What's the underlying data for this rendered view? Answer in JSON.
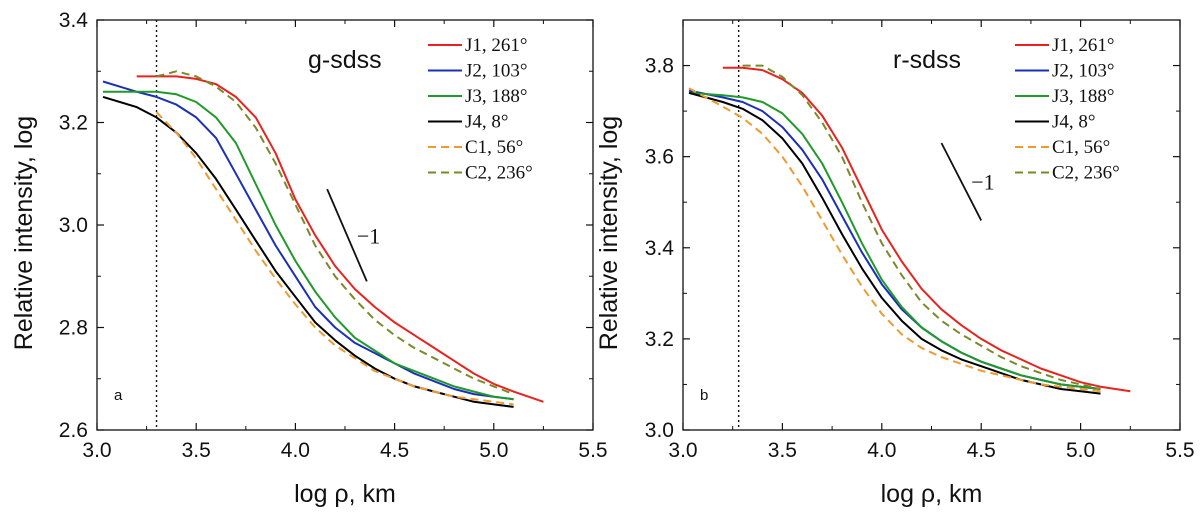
{
  "chart_data": [
    {
      "type": "line",
      "panel_letter": "a",
      "title": "g-sdss",
      "xlabel": "log ρ, km",
      "ylabel": "Relative intensity, log",
      "xlim": [
        3.0,
        5.5
      ],
      "ylim": [
        2.6,
        3.4
      ],
      "xticks": [
        "3.0",
        "3.5",
        "4.0",
        "4.5",
        "5.0",
        "5.5"
      ],
      "yticks": [
        "2.6",
        "2.8",
        "3.0",
        "3.2",
        "3.4"
      ],
      "vline_x": 3.3,
      "slope": {
        "label": "−1",
        "x": [
          4.16,
          4.36
        ],
        "y": [
          3.07,
          2.89
        ]
      },
      "series": [
        {
          "name": "J1, 261°",
          "color": "#e8231f",
          "dash": "solid",
          "x": [
            3.2,
            3.3,
            3.4,
            3.5,
            3.6,
            3.7,
            3.8,
            3.9,
            4.0,
            4.1,
            4.2,
            4.3,
            4.4,
            4.5,
            4.6,
            4.7,
            4.8,
            4.9,
            5.0,
            5.1,
            5.25
          ],
          "y": [
            3.29,
            3.29,
            3.29,
            3.285,
            3.275,
            3.25,
            3.21,
            3.14,
            3.05,
            2.98,
            2.92,
            2.875,
            2.84,
            2.81,
            2.785,
            2.76,
            2.735,
            2.71,
            2.69,
            2.675,
            2.655
          ]
        },
        {
          "name": "J2, 103°",
          "color": "#1b2fb8",
          "dash": "solid",
          "x": [
            3.03,
            3.2,
            3.3,
            3.4,
            3.5,
            3.6,
            3.7,
            3.8,
            3.9,
            4.0,
            4.1,
            4.2,
            4.3,
            4.4,
            4.5,
            4.6,
            4.7,
            4.8,
            4.9,
            5.0,
            5.1
          ],
          "y": [
            3.28,
            3.26,
            3.25,
            3.235,
            3.21,
            3.17,
            3.1,
            3.03,
            2.96,
            2.9,
            2.84,
            2.8,
            2.77,
            2.75,
            2.73,
            2.71,
            2.695,
            2.68,
            2.67,
            2.665,
            2.66
          ]
        },
        {
          "name": "J3, 188°",
          "color": "#1f9a2a",
          "dash": "solid",
          "x": [
            3.03,
            3.2,
            3.3,
            3.4,
            3.5,
            3.6,
            3.7,
            3.8,
            3.9,
            4.0,
            4.1,
            4.2,
            4.3,
            4.4,
            4.5,
            4.6,
            4.7,
            4.8,
            4.9,
            5.0,
            5.1
          ],
          "y": [
            3.26,
            3.26,
            3.26,
            3.255,
            3.24,
            3.21,
            3.16,
            3.08,
            3.0,
            2.93,
            2.87,
            2.82,
            2.78,
            2.755,
            2.73,
            2.715,
            2.7,
            2.685,
            2.675,
            2.665,
            2.66
          ]
        },
        {
          "name": "J4, 8°",
          "color": "#000000",
          "dash": "solid",
          "x": [
            3.03,
            3.2,
            3.3,
            3.4,
            3.5,
            3.6,
            3.7,
            3.8,
            3.9,
            4.0,
            4.1,
            4.2,
            4.3,
            4.4,
            4.5,
            4.6,
            4.7,
            4.8,
            4.9,
            5.0,
            5.1
          ],
          "y": [
            3.25,
            3.23,
            3.21,
            3.18,
            3.14,
            3.09,
            3.03,
            2.97,
            2.91,
            2.86,
            2.81,
            2.775,
            2.745,
            2.72,
            2.7,
            2.685,
            2.675,
            2.665,
            2.655,
            2.65,
            2.645
          ]
        },
        {
          "name": "C1, 56°",
          "color": "#f09a2e",
          "dash": "dashed",
          "x": [
            3.3,
            3.4,
            3.5,
            3.6,
            3.7,
            3.8,
            3.9,
            4.0,
            4.1,
            4.2,
            4.3,
            4.4,
            4.5,
            4.6,
            4.7,
            4.8,
            4.9,
            5.0,
            5.1
          ],
          "y": [
            3.22,
            3.18,
            3.13,
            3.07,
            3.01,
            2.95,
            2.895,
            2.845,
            2.8,
            2.765,
            2.74,
            2.715,
            2.7,
            2.685,
            2.675,
            2.665,
            2.66,
            2.655,
            2.65
          ]
        },
        {
          "name": "C2, 236°",
          "color": "#7a8a2a",
          "dash": "dashed",
          "x": [
            3.3,
            3.4,
            3.5,
            3.6,
            3.7,
            3.8,
            3.9,
            4.0,
            4.1,
            4.2,
            4.3,
            4.4,
            4.5,
            4.6,
            4.7,
            4.8,
            4.9,
            5.0,
            5.1
          ],
          "y": [
            3.29,
            3.3,
            3.29,
            3.27,
            3.24,
            3.19,
            3.12,
            3.04,
            2.96,
            2.9,
            2.855,
            2.815,
            2.785,
            2.76,
            2.74,
            2.72,
            2.7,
            2.685,
            2.67
          ]
        }
      ]
    },
    {
      "type": "line",
      "panel_letter": "b",
      "title": "r-sdss",
      "xlabel": "log ρ, km",
      "ylabel": "Relative intensity, log",
      "xlim": [
        3.0,
        5.5
      ],
      "ylim": [
        3.0,
        3.9
      ],
      "xticks": [
        "3.0",
        "3.5",
        "4.0",
        "4.5",
        "5.0",
        "5.5"
      ],
      "yticks": [
        "3.0",
        "3.2",
        "3.4",
        "3.6",
        "3.8"
      ],
      "vline_x": 3.28,
      "slope": {
        "label": "−1",
        "x": [
          4.3,
          4.5
        ],
        "y": [
          3.63,
          3.46
        ]
      },
      "series": [
        {
          "name": "J1, 261°",
          "color": "#e8231f",
          "dash": "solid",
          "x": [
            3.2,
            3.3,
            3.4,
            3.5,
            3.6,
            3.7,
            3.8,
            3.9,
            4.0,
            4.1,
            4.2,
            4.3,
            4.4,
            4.5,
            4.6,
            4.7,
            4.8,
            4.9,
            5.0,
            5.1,
            5.25
          ],
          "y": [
            3.795,
            3.795,
            3.79,
            3.77,
            3.74,
            3.69,
            3.62,
            3.53,
            3.44,
            3.37,
            3.31,
            3.265,
            3.23,
            3.2,
            3.175,
            3.155,
            3.135,
            3.12,
            3.105,
            3.095,
            3.085
          ]
        },
        {
          "name": "J2, 103°",
          "color": "#1b2fb8",
          "dash": "solid",
          "x": [
            3.03,
            3.2,
            3.3,
            3.4,
            3.5,
            3.6,
            3.7,
            3.8,
            3.9,
            4.0,
            4.1,
            4.2,
            4.3,
            4.4,
            4.5,
            4.6,
            4.7,
            4.8,
            4.9,
            5.0,
            5.1
          ],
          "y": [
            3.745,
            3.73,
            3.72,
            3.7,
            3.665,
            3.615,
            3.55,
            3.47,
            3.39,
            3.32,
            3.265,
            3.225,
            3.195,
            3.17,
            3.15,
            3.135,
            3.12,
            3.11,
            3.1,
            3.095,
            3.09
          ]
        },
        {
          "name": "J3, 188°",
          "color": "#1f9a2a",
          "dash": "solid",
          "x": [
            3.03,
            3.2,
            3.3,
            3.4,
            3.5,
            3.6,
            3.7,
            3.8,
            3.9,
            4.0,
            4.1,
            4.2,
            4.3,
            4.4,
            4.5,
            4.6,
            4.7,
            4.8,
            4.9,
            5.0,
            5.1
          ],
          "y": [
            3.74,
            3.735,
            3.73,
            3.72,
            3.695,
            3.65,
            3.585,
            3.5,
            3.41,
            3.33,
            3.27,
            3.225,
            3.195,
            3.17,
            3.15,
            3.135,
            3.12,
            3.11,
            3.1,
            3.095,
            3.09
          ]
        },
        {
          "name": "J4, 8°",
          "color": "#000000",
          "dash": "solid",
          "x": [
            3.03,
            3.2,
            3.3,
            3.4,
            3.5,
            3.6,
            3.7,
            3.8,
            3.9,
            4.0,
            4.1,
            4.2,
            4.3,
            4.4,
            4.5,
            4.6,
            4.7,
            4.8,
            4.9,
            5.0,
            5.1
          ],
          "y": [
            3.74,
            3.72,
            3.705,
            3.68,
            3.64,
            3.585,
            3.51,
            3.43,
            3.355,
            3.29,
            3.24,
            3.2,
            3.175,
            3.155,
            3.14,
            3.125,
            3.11,
            3.1,
            3.09,
            3.085,
            3.08
          ]
        },
        {
          "name": "C1, 56°",
          "color": "#f09a2e",
          "dash": "dashed",
          "x": [
            3.03,
            3.2,
            3.3,
            3.4,
            3.5,
            3.6,
            3.7,
            3.8,
            3.9,
            4.0,
            4.1,
            4.2,
            4.3,
            4.4,
            4.5,
            4.6,
            4.7,
            4.8,
            4.9,
            5.0,
            5.1
          ],
          "y": [
            3.75,
            3.71,
            3.685,
            3.65,
            3.6,
            3.535,
            3.46,
            3.385,
            3.315,
            3.255,
            3.21,
            3.18,
            3.16,
            3.145,
            3.13,
            3.12,
            3.11,
            3.1,
            3.095,
            3.09,
            3.085
          ]
        },
        {
          "name": "C2, 236°",
          "color": "#7a8a2a",
          "dash": "dashed",
          "x": [
            3.3,
            3.4,
            3.5,
            3.6,
            3.7,
            3.8,
            3.9,
            4.0,
            4.1,
            4.2,
            4.3,
            4.4,
            4.5,
            4.6,
            4.7,
            4.8,
            4.9,
            5.0,
            5.1
          ],
          "y": [
            3.8,
            3.8,
            3.775,
            3.735,
            3.675,
            3.6,
            3.5,
            3.41,
            3.34,
            3.28,
            3.24,
            3.21,
            3.185,
            3.16,
            3.14,
            3.125,
            3.11,
            3.1,
            3.09
          ]
        }
      ]
    }
  ]
}
